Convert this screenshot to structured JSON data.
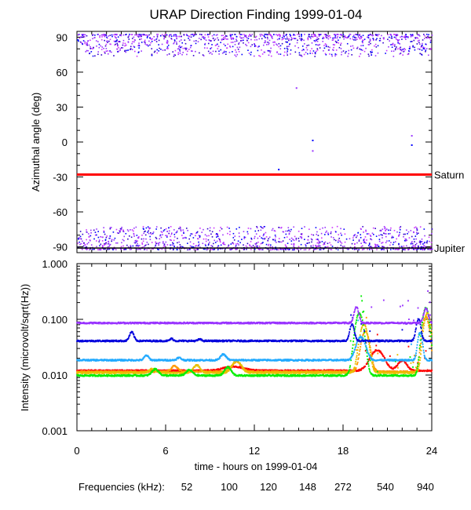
{
  "chart_data": [
    {
      "type": "scatter",
      "title": "URAP Direction Finding  1999-01-04",
      "ylabel": "Azimuthal angle (deg)",
      "xlim": [
        0,
        24
      ],
      "ylim": [
        -95,
        95
      ],
      "yticks": [
        "90",
        "60",
        "30",
        "0",
        "-30",
        "-60",
        "-90"
      ],
      "ytick_values": [
        90,
        60,
        30,
        0,
        -30,
        -60,
        -90
      ],
      "reference_lines": [
        {
          "name": "Saturn",
          "y": -28,
          "color": "#ff0000"
        },
        {
          "name": "Jupiter",
          "y": -91,
          "color": "#000000"
        }
      ],
      "clusters": [
        {
          "name": "upper band",
          "y_range": [
            74,
            93
          ],
          "x_range": [
            0,
            24
          ]
        },
        {
          "name": "lower band",
          "y_range": [
            -92,
            -72
          ],
          "x_range": [
            0,
            24
          ]
        }
      ],
      "outliers": [
        {
          "x": 14.8,
          "y": 47,
          "color": "#9933ff"
        },
        {
          "x": 15.9,
          "y": 2,
          "color": "#0000ff"
        },
        {
          "x": 15.9,
          "y": -7,
          "color": "#9933ff"
        },
        {
          "x": 22.6,
          "y": 6,
          "color": "#9933ff"
        },
        {
          "x": 22.6,
          "y": -2,
          "color": "#0000ff"
        },
        {
          "x": 13.6,
          "y": -23,
          "color": "#0000ff"
        }
      ]
    },
    {
      "type": "line",
      "ylabel": "Intensity (microvolt/sqrt(Hz))",
      "xlabel": "time - hours on 1999-01-04",
      "xlim": [
        0,
        24
      ],
      "ylim": [
        0.001,
        1.0
      ],
      "yscale": "log",
      "xticks": [
        "0",
        "6",
        "12",
        "18",
        "24"
      ],
      "xtick_values": [
        0,
        6,
        12,
        18,
        24
      ],
      "yticks": [
        "1.000",
        "0.100",
        "0.010",
        "0.001"
      ],
      "ytick_values": [
        1.0,
        0.1,
        0.01,
        0.001
      ],
      "series": [
        {
          "name": "52",
          "color": "#ff0000",
          "base": 0.012,
          "bumps": [
            [
              10.6,
              0.0022,
              0.9
            ],
            [
              20.3,
              0.016,
              0.6
            ],
            [
              22.0,
              0.006,
              0.4
            ]
          ]
        },
        {
          "name": "100",
          "color": "#ff9900",
          "base": 0.0115,
          "bumps": [
            [
              6.6,
              0.003,
              0.3
            ],
            [
              10.8,
              0.006,
              0.4
            ],
            [
              19.5,
              0.05,
              0.35
            ],
            [
              23.6,
              0.1,
              0.3
            ]
          ]
        },
        {
          "name": "120",
          "color": "#e8c000",
          "base": 0.011,
          "bumps": [
            [
              5.1,
              0.002,
              0.3
            ],
            [
              8.1,
              0.004,
              0.3
            ],
            [
              10.8,
              0.007,
              0.4
            ],
            [
              19.4,
              0.07,
              0.35
            ],
            [
              23.7,
              0.12,
              0.3
            ]
          ]
        },
        {
          "name": "148",
          "color": "#00ee00",
          "base": 0.0098,
          "bumps": [
            [
              5.3,
              0.003,
              0.3
            ],
            [
              7.6,
              0.0025,
              0.3
            ],
            [
              10.2,
              0.004,
              0.3
            ],
            [
              19.1,
              0.12,
              0.35
            ],
            [
              23.6,
              0.15,
              0.3
            ]
          ]
        },
        {
          "name": "272",
          "color": "#22aaff",
          "base": 0.0185,
          "bumps": [
            [
              4.7,
              0.004,
              0.2
            ],
            [
              6.9,
              0.002,
              0.2
            ],
            [
              9.9,
              0.005,
              0.25
            ],
            [
              19.2,
              0.03,
              0.4
            ],
            [
              23.2,
              0.04,
              0.2
            ]
          ]
        },
        {
          "name": "540",
          "color": "#0000dd",
          "base": 0.041,
          "bumps": [
            [
              3.7,
              0.018,
              0.2
            ],
            [
              6.4,
              0.004,
              0.15
            ],
            [
              8.3,
              0.003,
              0.15
            ],
            [
              18.6,
              0.04,
              0.2
            ],
            [
              23.1,
              0.06,
              0.2
            ]
          ]
        },
        {
          "name": "940",
          "color": "#9933ff",
          "base": 0.086,
          "bumps": [
            [
              18.9,
              0.08,
              0.2
            ],
            [
              23.6,
              0.07,
              0.2
            ]
          ]
        }
      ],
      "legend": {
        "label": "Frequencies (kHz):",
        "placement": "bottom"
      }
    }
  ]
}
